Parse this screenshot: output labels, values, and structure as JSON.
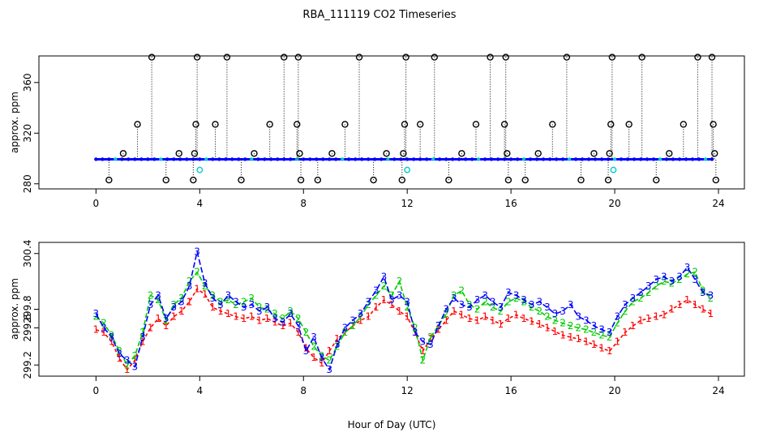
{
  "title": "RBA_111119  CO2 Timeseries",
  "colors": {
    "series1": "#ff0000",
    "series2": "#00cc00",
    "series3": "#0000ff",
    "outlier": "#000000",
    "highlight": "#00cccc",
    "axis": "#000000"
  },
  "chart_data": [
    {
      "type": "scatter",
      "title": "",
      "xlabel": "",
      "ylabel": "approx. ppm",
      "xlim": [
        -2.2,
        25
      ],
      "ylim": [
        276,
        381
      ],
      "xticks": [
        0,
        4,
        8,
        12,
        16,
        20,
        24
      ],
      "yticks": [
        280,
        320,
        360
      ],
      "baseline_value": 299.4,
      "series": [
        {
          "name": "baseline",
          "marker": "filled-dot",
          "x": [
            0.0,
            0.25,
            0.5,
            0.75,
            1.0,
            1.25,
            1.5,
            1.75,
            2.0,
            2.25,
            2.5,
            2.75,
            3.0,
            3.25,
            3.5,
            3.75,
            4.0,
            4.25,
            4.5,
            4.75,
            5.0,
            5.25,
            5.5,
            5.75,
            6.0,
            6.25,
            6.5,
            6.75,
            7.0,
            7.25,
            7.5,
            7.75,
            8.0,
            8.25,
            8.5,
            8.75,
            9.0,
            9.25,
            9.5,
            9.75,
            10.0,
            10.25,
            10.5,
            10.75,
            11.0,
            11.25,
            11.5,
            11.75,
            12.0,
            12.25,
            12.5,
            12.75,
            13.0,
            13.25,
            13.5,
            13.75,
            14.0,
            14.25,
            14.5,
            14.75,
            15.0,
            15.25,
            15.5,
            15.75,
            16.0,
            16.25,
            16.5,
            16.75,
            17.0,
            17.25,
            17.5,
            17.75,
            18.0,
            18.25,
            18.5,
            18.75,
            19.0,
            19.25,
            19.5,
            19.75,
            20.0,
            20.25,
            20.5,
            20.75,
            21.0,
            21.25,
            21.5,
            21.75,
            22.0,
            22.25,
            22.5,
            22.75,
            23.0,
            23.25,
            23.5,
            23.75
          ],
          "values": [
            299.4,
            299.4,
            299.4,
            299.4,
            299.4,
            299.4,
            299.4,
            299.4,
            299.4,
            299.4,
            299.4,
            299.4,
            299.4,
            299.4,
            299.4,
            299.4,
            299.4,
            299.4,
            299.4,
            299.4,
            299.4,
            299.4,
            299.4,
            299.4,
            299.4,
            299.4,
            299.4,
            299.4,
            299.4,
            299.4,
            299.4,
            299.4,
            299.4,
            299.4,
            299.4,
            299.4,
            299.4,
            299.4,
            299.4,
            299.4,
            299.4,
            299.4,
            299.4,
            299.4,
            299.4,
            299.4,
            299.4,
            299.4,
            299.4,
            299.4,
            299.4,
            299.4,
            299.4,
            299.4,
            299.4,
            299.4,
            299.4,
            299.4,
            299.4,
            299.4,
            299.4,
            299.4,
            299.4,
            299.4,
            299.4,
            299.4,
            299.4,
            299.4,
            299.4,
            299.4,
            299.4,
            299.4,
            299.4,
            299.4,
            299.4,
            299.4,
            299.4,
            299.4,
            299.4,
            299.4,
            299.4,
            299.4,
            299.4,
            299.4,
            299.4,
            299.4,
            299.4,
            299.4,
            299.4,
            299.4,
            299.4,
            299.4,
            299.4,
            299.4,
            299.4,
            299.4
          ]
        },
        {
          "name": "outliers",
          "marker": "open-circle",
          "x": [
            0.5,
            1.05,
            1.6,
            2.15,
            2.7,
            3.2,
            3.75,
            3.8,
            3.85,
            3.9,
            4.6,
            5.05,
            5.6,
            6.1,
            6.7,
            7.25,
            7.75,
            7.8,
            7.85,
            7.9,
            8.55,
            9.1,
            9.6,
            10.15,
            10.7,
            11.2,
            11.8,
            11.85,
            11.9,
            11.95,
            12.5,
            13.05,
            13.6,
            14.1,
            14.65,
            15.2,
            15.75,
            15.8,
            15.85,
            15.9,
            16.55,
            17.05,
            17.6,
            18.15,
            18.7,
            19.2,
            19.75,
            19.8,
            19.85,
            19.9,
            20.55,
            21.05,
            21.6,
            22.1,
            22.65,
            23.2,
            23.75,
            23.8,
            23.85,
            23.9
          ],
          "values": [
            283,
            304,
            327,
            380,
            283,
            304,
            283,
            304,
            327,
            380,
            327,
            380,
            283,
            304,
            327,
            380,
            327,
            380,
            304,
            283,
            283,
            304,
            327,
            380,
            283,
            304,
            283,
            304,
            327,
            380,
            327,
            380,
            283,
            304,
            327,
            380,
            327,
            380,
            304,
            283,
            283,
            304,
            327,
            380,
            283,
            304,
            283,
            304,
            327,
            380,
            327,
            380,
            283,
            304,
            327,
            380,
            380,
            327,
            304,
            283
          ]
        },
        {
          "name": "highlight",
          "marker": "open-circle",
          "x": [
            4.0,
            12.0,
            19.95
          ],
          "values": [
            291,
            291,
            291
          ]
        }
      ]
    },
    {
      "type": "line",
      "title": "",
      "xlabel": "Hour of Day (UTC)",
      "ylabel": "approx. ppm",
      "xlim": [
        -2.2,
        25
      ],
      "ylim": [
        299.08,
        300.52
      ],
      "xticks": [
        0,
        4,
        8,
        12,
        16,
        20,
        24
      ],
      "yticks": [
        "299.2",
        "299.6",
        "299.8",
        "300.4"
      ],
      "ytick_values": [
        299.2,
        299.6,
        299.8,
        300.4
      ],
      "series": [
        {
          "name": "1",
          "label": "1",
          "x": [
            0.0,
            0.3,
            0.6,
            0.9,
            1.2,
            1.5,
            1.8,
            2.1,
            2.4,
            2.7,
            3.0,
            3.3,
            3.6,
            3.9,
            4.2,
            4.5,
            4.8,
            5.1,
            5.4,
            5.7,
            6.0,
            6.3,
            6.6,
            6.9,
            7.2,
            7.5,
            7.8,
            8.1,
            8.4,
            8.7,
            9.0,
            9.3,
            9.6,
            9.9,
            10.2,
            10.5,
            10.8,
            11.1,
            11.4,
            11.7,
            12.0,
            12.3,
            12.6,
            12.9,
            13.2,
            13.5,
            13.8,
            14.1,
            14.4,
            14.7,
            15.0,
            15.3,
            15.6,
            15.9,
            16.2,
            16.5,
            16.8,
            17.1,
            17.4,
            17.7,
            18.0,
            18.3,
            18.6,
            18.9,
            19.2,
            19.5,
            19.8,
            20.1,
            20.4,
            20.7,
            21.0,
            21.3,
            21.6,
            21.9,
            22.2,
            22.5,
            22.8,
            23.1,
            23.4,
            23.7
          ],
          "values": [
            299.58,
            299.55,
            299.45,
            299.27,
            299.15,
            299.25,
            299.45,
            299.6,
            299.7,
            299.62,
            299.72,
            299.78,
            299.88,
            300.02,
            299.96,
            299.82,
            299.78,
            299.75,
            299.72,
            299.7,
            299.72,
            299.68,
            299.7,
            299.66,
            299.62,
            299.65,
            299.55,
            299.38,
            299.28,
            299.22,
            299.35,
            299.48,
            299.55,
            299.62,
            299.68,
            299.72,
            299.82,
            299.9,
            299.85,
            299.78,
            299.72,
            299.55,
            299.35,
            299.48,
            299.58,
            299.68,
            299.78,
            299.74,
            299.7,
            299.68,
            299.72,
            299.68,
            299.64,
            299.7,
            299.74,
            299.7,
            299.67,
            299.64,
            299.6,
            299.56,
            299.52,
            299.5,
            299.48,
            299.45,
            299.42,
            299.38,
            299.35,
            299.45,
            299.55,
            299.62,
            299.68,
            299.7,
            299.72,
            299.74,
            299.8,
            299.85,
            299.9,
            299.85,
            299.8,
            299.75
          ]
        },
        {
          "name": "2",
          "label": "2",
          "x": [
            0.0,
            0.3,
            0.6,
            0.9,
            1.2,
            1.5,
            1.8,
            2.1,
            2.4,
            2.7,
            3.0,
            3.3,
            3.6,
            3.9,
            4.2,
            4.5,
            4.8,
            5.1,
            5.4,
            5.7,
            6.0,
            6.3,
            6.6,
            6.9,
            7.2,
            7.5,
            7.8,
            8.1,
            8.4,
            8.7,
            9.0,
            9.3,
            9.6,
            9.9,
            10.2,
            10.5,
            10.8,
            11.1,
            11.4,
            11.7,
            12.0,
            12.3,
            12.6,
            12.9,
            13.2,
            13.5,
            13.8,
            14.1,
            14.4,
            14.7,
            15.0,
            15.3,
            15.6,
            15.9,
            16.2,
            16.5,
            16.8,
            17.1,
            17.4,
            17.7,
            18.0,
            18.3,
            18.6,
            18.9,
            19.2,
            19.5,
            19.8,
            20.1,
            20.4,
            20.7,
            21.0,
            21.3,
            21.6,
            21.9,
            22.2,
            22.5,
            22.8,
            23.1,
            23.4,
            23.7
          ],
          "values": [
            299.72,
            299.65,
            299.52,
            299.35,
            299.2,
            299.3,
            299.55,
            299.95,
            299.9,
            299.68,
            299.85,
            299.92,
            300.1,
            300.2,
            300.05,
            299.95,
            299.88,
            299.9,
            299.85,
            299.88,
            299.92,
            299.82,
            299.8,
            299.75,
            299.7,
            299.78,
            299.7,
            299.55,
            299.4,
            299.3,
            299.25,
            299.4,
            299.55,
            299.62,
            299.72,
            299.85,
            299.95,
            300.05,
            299.95,
            300.1,
            299.82,
            299.6,
            299.25,
            299.5,
            299.62,
            299.75,
            299.95,
            300.0,
            299.85,
            299.8,
            299.88,
            299.82,
            299.78,
            299.88,
            299.92,
            299.88,
            299.82,
            299.78,
            299.72,
            299.68,
            299.65,
            299.62,
            299.6,
            299.58,
            299.55,
            299.52,
            299.5,
            299.65,
            299.78,
            299.88,
            299.92,
            299.98,
            300.05,
            300.1,
            300.08,
            300.12,
            300.18,
            300.2,
            300.0,
            299.92
          ]
        },
        {
          "name": "3",
          "label": "3",
          "x": [
            0.0,
            0.3,
            0.6,
            0.9,
            1.2,
            1.5,
            1.8,
            2.1,
            2.4,
            2.7,
            3.0,
            3.3,
            3.6,
            3.9,
            4.2,
            4.5,
            4.8,
            5.1,
            5.4,
            5.7,
            6.0,
            6.3,
            6.6,
            6.9,
            7.2,
            7.5,
            7.8,
            8.1,
            8.4,
            8.7,
            9.0,
            9.3,
            9.6,
            9.9,
            10.2,
            10.5,
            10.8,
            11.1,
            11.4,
            11.7,
            12.0,
            12.3,
            12.6,
            12.9,
            13.2,
            13.5,
            13.8,
            14.1,
            14.4,
            14.7,
            15.0,
            15.3,
            15.6,
            15.9,
            16.2,
            16.5,
            16.8,
            17.1,
            17.4,
            17.7,
            18.0,
            18.3,
            18.6,
            18.9,
            19.2,
            19.5,
            19.8,
            20.1,
            20.4,
            20.7,
            21.0,
            21.3,
            21.6,
            21.9,
            22.2,
            22.5,
            22.8,
            23.1,
            23.4,
            23.7
          ],
          "values": [
            299.75,
            299.6,
            299.5,
            299.32,
            299.25,
            299.18,
            299.5,
            299.85,
            299.95,
            299.7,
            299.82,
            299.88,
            300.05,
            300.42,
            300.08,
            299.92,
            299.85,
            299.95,
            299.88,
            299.82,
            299.85,
            299.78,
            299.82,
            299.7,
            299.66,
            299.75,
            299.62,
            299.35,
            299.5,
            299.28,
            299.15,
            299.42,
            299.6,
            299.68,
            299.75,
            299.88,
            300.0,
            300.15,
            299.9,
            299.95,
            299.88,
            299.55,
            299.45,
            299.42,
            299.62,
            299.8,
            299.92,
            299.85,
            299.82,
            299.9,
            299.95,
            299.88,
            299.82,
            299.98,
            299.95,
            299.9,
            299.85,
            299.88,
            299.82,
            299.75,
            299.78,
            299.85,
            299.72,
            299.68,
            299.62,
            299.58,
            299.55,
            299.72,
            299.85,
            299.92,
            299.98,
            300.05,
            300.12,
            300.15,
            300.1,
            300.15,
            300.25,
            300.12,
            299.98,
            299.95
          ]
        }
      ]
    }
  ]
}
